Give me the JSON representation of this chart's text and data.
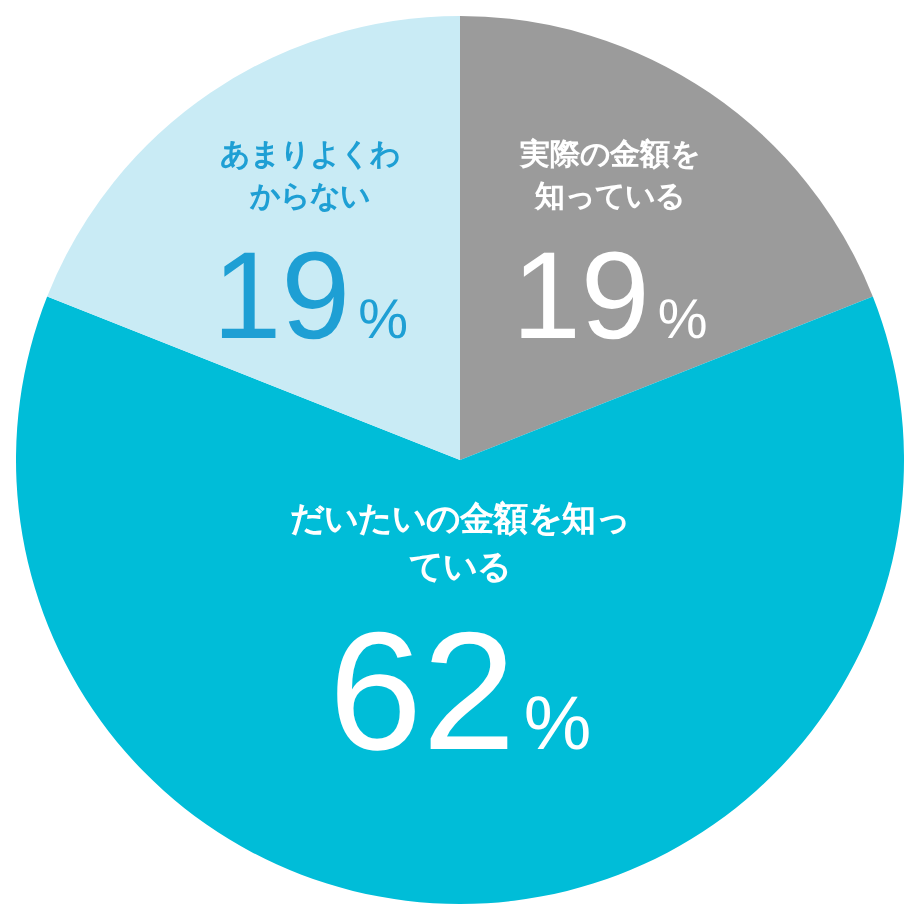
{
  "chart_data": {
    "type": "pie",
    "categories": [
      "実際の金額を知っている",
      "だいたいの金額を知っている",
      "あまりよくわからない"
    ],
    "values": [
      19,
      62,
      19
    ],
    "colors": [
      "#9b9b9b",
      "#00bdd8",
      "#c9ebf5"
    ],
    "value_labels": [
      "19%",
      "62%",
      "19%"
    ],
    "legend": false
  }
}
